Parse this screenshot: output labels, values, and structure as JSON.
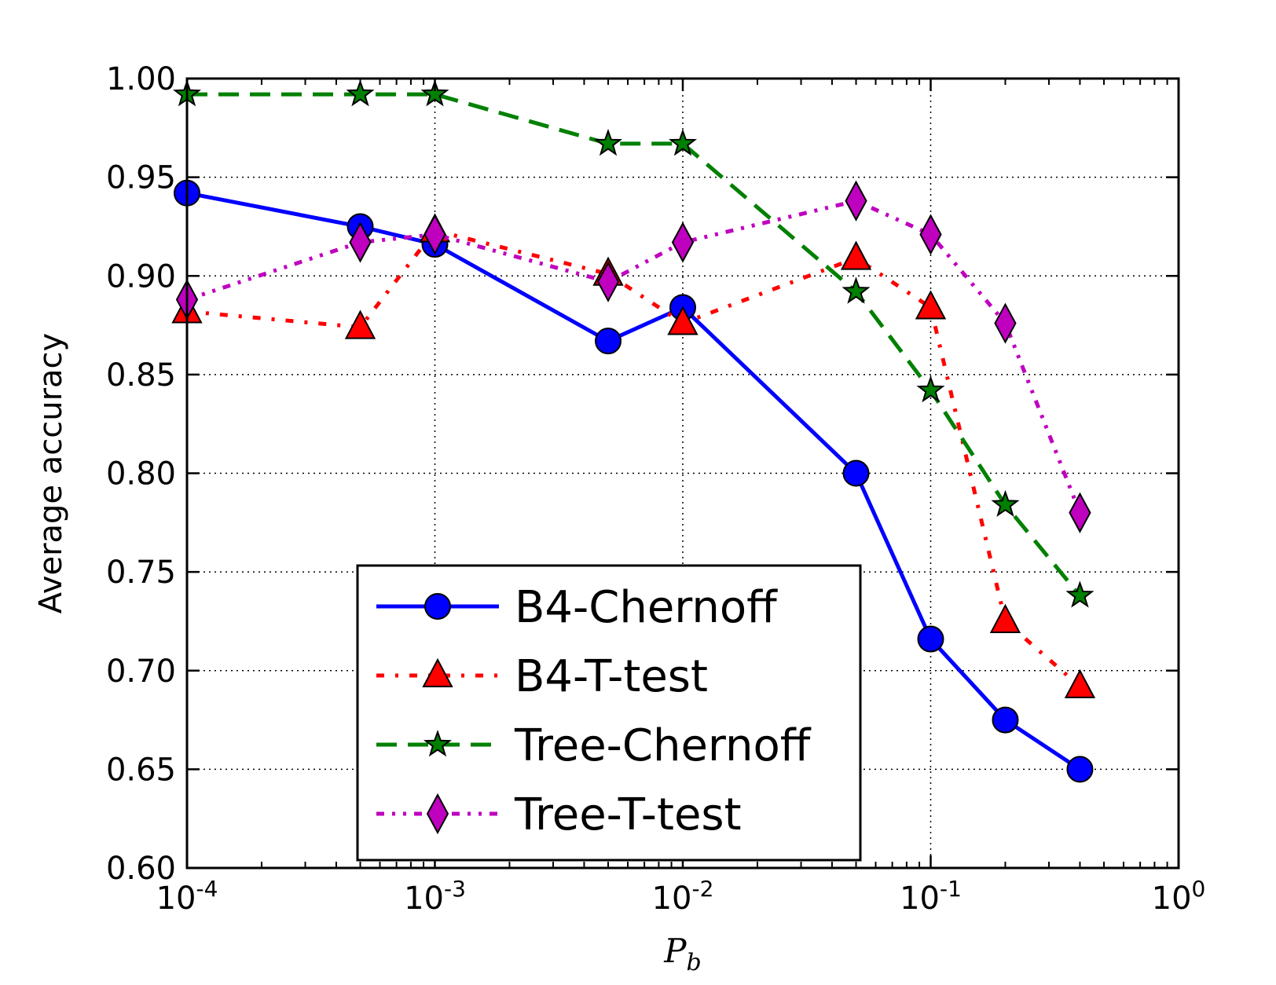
{
  "chart_data": {
    "type": "line",
    "xlabel": "P",
    "xlabel_sub": "b",
    "ylabel": "Average accuracy",
    "xscale": "log",
    "xlim": [
      0.0001,
      1
    ],
    "ylim": [
      0.6,
      1.0
    ],
    "grid": true,
    "legend_position": "lower-center",
    "x_tick_labels": [
      {
        "base": "10",
        "exp": "-4"
      },
      {
        "base": "10",
        "exp": "-3"
      },
      {
        "base": "10",
        "exp": "-2"
      },
      {
        "base": "10",
        "exp": "-1"
      },
      {
        "base": "10",
        "exp": "0"
      }
    ],
    "y_tick_labels": [
      "0.60",
      "0.65",
      "0.70",
      "0.75",
      "0.80",
      "0.85",
      "0.90",
      "0.95",
      "1.00"
    ],
    "x": [
      0.0001,
      0.0005,
      0.001,
      0.005,
      0.01,
      0.05,
      0.1,
      0.2,
      0.4
    ],
    "series": [
      {
        "name": "B4-Chernoff",
        "color": "#0000ff",
        "linestyle": "solid",
        "marker": "circle",
        "values": [
          0.942,
          0.925,
          0.916,
          0.867,
          0.884,
          0.8,
          0.716,
          0.675,
          0.65
        ]
      },
      {
        "name": "B4-T-test",
        "color": "#ff0000",
        "linestyle": "dashdot",
        "marker": "triangle",
        "values": [
          0.882,
          0.874,
          0.923,
          0.901,
          0.876,
          0.909,
          0.884,
          0.725,
          0.692
        ]
      },
      {
        "name": "Tree-Chernoff",
        "color": "#008000",
        "linestyle": "dashed",
        "marker": "star",
        "values": [
          0.992,
          0.992,
          0.992,
          0.967,
          0.967,
          0.892,
          0.842,
          0.784,
          0.738
        ]
      },
      {
        "name": "Tree-T-test",
        "color": "#bf00bf",
        "linestyle": "dashdotdot",
        "marker": "diamond",
        "values": [
          0.888,
          0.917,
          0.921,
          0.897,
          0.917,
          0.938,
          0.921,
          0.876,
          0.78
        ]
      }
    ]
  }
}
